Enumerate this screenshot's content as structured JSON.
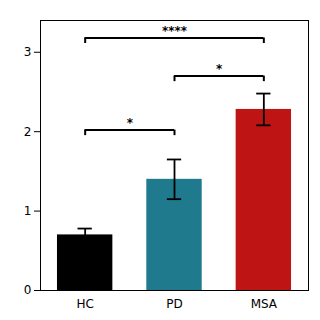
{
  "chart_data": {
    "type": "bar",
    "categories": [
      "HC",
      "PD",
      "MSA"
    ],
    "values": [
      0.7,
      1.4,
      2.28
    ],
    "errors": [
      0.08,
      0.25,
      0.2
    ],
    "colors": [
      "#000000",
      "#1e7a8c",
      "#be1414"
    ],
    "ylim": [
      0,
      3.4
    ],
    "yticks": [
      0,
      1,
      2,
      3
    ],
    "grid": false,
    "significance": [
      {
        "from": "HC",
        "to": "PD",
        "y": 2.02,
        "label": "*"
      },
      {
        "from": "PD",
        "to": "MSA",
        "y": 2.7,
        "label": "*"
      },
      {
        "from": "HC",
        "to": "MSA",
        "y": 3.18,
        "label": "****"
      }
    ]
  }
}
